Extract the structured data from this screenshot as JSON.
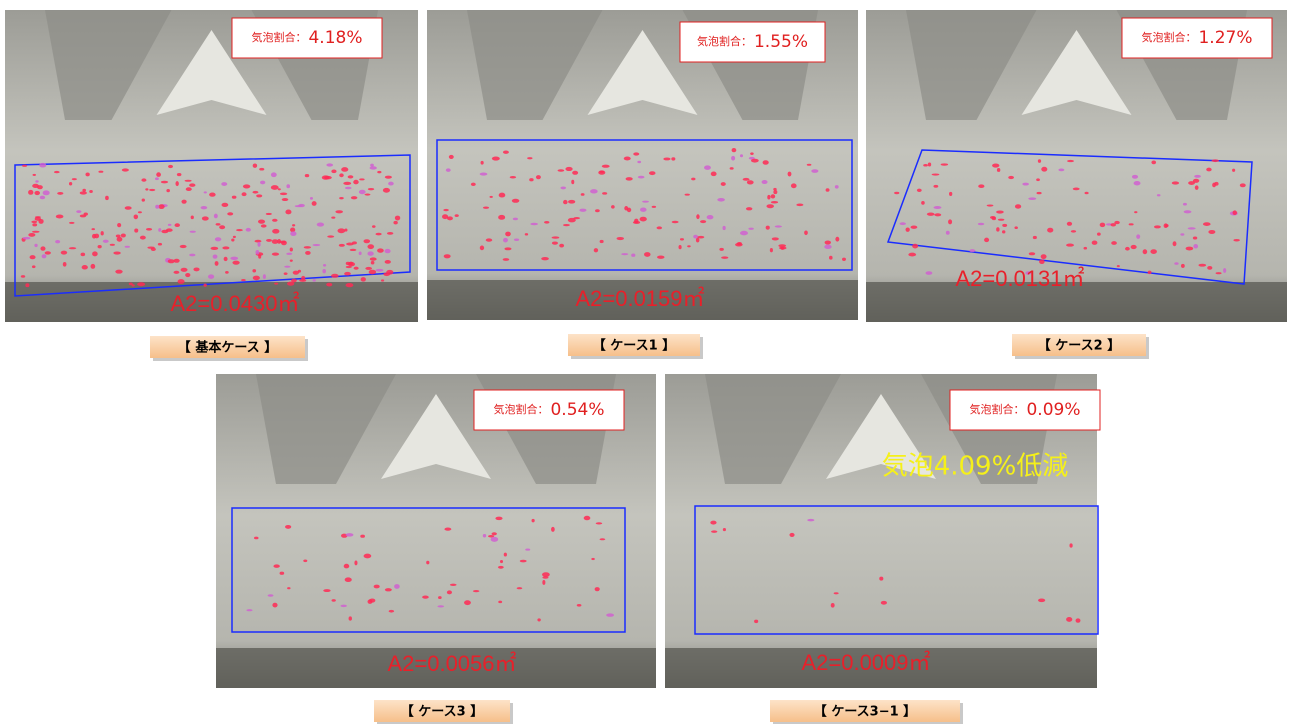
{
  "panels": [
    {
      "ratio_label": "気泡割合：",
      "ratio": "4.18%",
      "area": "A2=0.0430㎡",
      "caption": "【 基本ケース 】"
    },
    {
      "ratio_label": "気泡割合：",
      "ratio": "1.55%",
      "area": "A2=0.0159㎡",
      "caption": "【 ケース1 】"
    },
    {
      "ratio_label": "気泡割合：",
      "ratio": "1.27%",
      "area": "A2=0.0131㎡",
      "caption": "【 ケース2 】"
    },
    {
      "ratio_label": "気泡割合：",
      "ratio": "0.54%",
      "area": "A2=0.0056㎡",
      "caption": "【 ケース3 】"
    },
    {
      "ratio_label": "気泡割合：",
      "ratio": "0.09%",
      "area": "A2=0.0009㎡",
      "caption": "【 ケース3−1 】"
    }
  ],
  "annotation": "気泡4.09%低減"
}
